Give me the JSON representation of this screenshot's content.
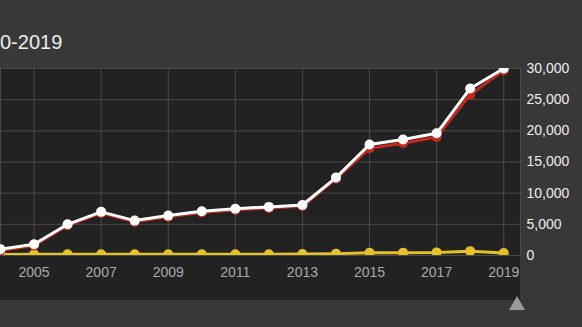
{
  "chart_data": {
    "type": "line",
    "title": "0-2019",
    "x": [
      2004,
      2005,
      2006,
      2007,
      2008,
      2009,
      2010,
      2011,
      2012,
      2013,
      2014,
      2015,
      2016,
      2017,
      2018,
      2019
    ],
    "series": [
      {
        "color": "#e6c229",
        "marker": "circle",
        "values": [
          150,
          200,
          200,
          200,
          200,
          200,
          200,
          200,
          200,
          250,
          300,
          450,
          450,
          500,
          700,
          400
        ]
      },
      {
        "color": "#c4281c",
        "marker": "circle",
        "values": [
          800,
          1600,
          4800,
          6800,
          5400,
          6200,
          6900,
          7300,
          7600,
          7900,
          12300,
          17200,
          18000,
          19000,
          25800,
          29700
        ]
      },
      {
        "color": "#ffffff",
        "marker": "circle",
        "values": [
          1000,
          1800,
          5000,
          7000,
          5600,
          6400,
          7100,
          7500,
          7800,
          8100,
          12500,
          17800,
          18600,
          19600,
          26800,
          30000
        ]
      }
    ],
    "xlim": [
      2004,
      2019.5
    ],
    "xticks": [
      2005,
      2007,
      2009,
      2011,
      2013,
      2015,
      2017,
      2019
    ],
    "ylim": [
      0,
      30000
    ],
    "yticks": [
      0,
      {
        "value": 5000,
        "label": "5,000"
      },
      {
        "value": 10000,
        "label": "10,000"
      },
      {
        "value": 15000,
        "label": "15,000"
      },
      {
        "value": 20000,
        "label": "20,000"
      },
      {
        "value": 25000,
        "label": "25,000"
      },
      {
        "value": 30000,
        "label": "30,000"
      }
    ],
    "grid": true
  }
}
